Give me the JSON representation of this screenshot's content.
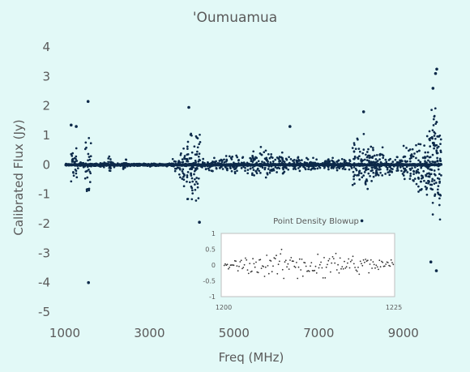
{
  "colors": {
    "background": "#e2f9f7",
    "points": "#0d2a4a",
    "axis_text": "#5a5a5a",
    "inset_background": "#ffffff",
    "inset_border": "#bfbfbf"
  },
  "chart_data": [
    {
      "type": "scatter",
      "title": "'Oumuamua",
      "xlabel": "Freq (MHz)",
      "ylabel": "Calibrated Flux (Jy)",
      "xlim": [
        1000,
        10000
      ],
      "ylim": [
        -5,
        4
      ],
      "xticks": [
        1000,
        3000,
        5000,
        7000,
        9000
      ],
      "xtick_labels": [
        "1000",
        "3000",
        "5000",
        "7000",
        "9000"
      ],
      "yticks": [
        4,
        3,
        2,
        1,
        0,
        -1,
        -2,
        -3,
        -4,
        -5
      ],
      "ytick_labels": [
        "4",
        "3",
        "2",
        "1",
        "0",
        "-1",
        "-2",
        "-3",
        "-4",
        "-5"
      ],
      "grid": false,
      "legend": "none",
      "band_envelope": {
        "description_units": "freq MHz -> approx flux amplitude Jy",
        "bands": [
          {
            "start": 1000,
            "end": 1130,
            "amp": 0.05
          },
          {
            "start": 1130,
            "end": 1330,
            "amp": 0.75
          },
          {
            "start": 1330,
            "end": 1480,
            "amp": 0.12
          },
          {
            "start": 1480,
            "end": 1620,
            "amp": 1.3
          },
          {
            "start": 1620,
            "end": 2000,
            "amp": 0.12
          },
          {
            "start": 2000,
            "end": 2100,
            "amp": 0.35
          },
          {
            "start": 2100,
            "end": 2380,
            "amp": 0.1
          },
          {
            "start": 2380,
            "end": 2460,
            "amp": 0.4
          },
          {
            "start": 2460,
            "end": 3500,
            "amp": 0.07
          },
          {
            "start": 3500,
            "end": 3700,
            "amp": 0.25
          },
          {
            "start": 3700,
            "end": 3850,
            "amp": 0.9
          },
          {
            "start": 3850,
            "end": 4200,
            "amp": 1.6
          },
          {
            "start": 4200,
            "end": 4600,
            "amp": 0.3
          },
          {
            "start": 4600,
            "end": 5400,
            "amp": 0.4
          },
          {
            "start": 5400,
            "end": 5900,
            "amp": 0.7
          },
          {
            "start": 5900,
            "end": 6200,
            "amp": 0.55
          },
          {
            "start": 6200,
            "end": 7400,
            "amp": 0.35
          },
          {
            "start": 7400,
            "end": 7800,
            "amp": 0.3
          },
          {
            "start": 7800,
            "end": 8300,
            "amp": 1.2
          },
          {
            "start": 8300,
            "end": 8700,
            "amp": 0.7
          },
          {
            "start": 8700,
            "end": 8950,
            "amp": 0.35
          },
          {
            "start": 8950,
            "end": 9300,
            "amp": 0.9
          },
          {
            "start": 9300,
            "end": 9600,
            "amp": 1.6
          },
          {
            "start": 9600,
            "end": 9900,
            "amp": 2.6
          }
        ]
      },
      "outliers": [
        {
          "x": 1560,
          "y": -4.0
        },
        {
          "x": 1550,
          "y": 2.15
        },
        {
          "x": 9790,
          "y": 3.25
        },
        {
          "x": 9760,
          "y": 3.1
        },
        {
          "x": 9700,
          "y": 2.6
        },
        {
          "x": 9780,
          "y": -3.6
        },
        {
          "x": 9650,
          "y": -3.3
        },
        {
          "x": 8060,
          "y": 1.8
        },
        {
          "x": 3930,
          "y": 1.95
        },
        {
          "x": 4180,
          "y": -1.95
        },
        {
          "x": 6320,
          "y": 1.3
        },
        {
          "x": 1150,
          "y": 1.35
        },
        {
          "x": 1270,
          "y": 1.3
        },
        {
          "x": 8020,
          "y": -1.9
        }
      ]
    },
    {
      "type": "scatter",
      "title": "Point Density Blowup",
      "xlim": [
        1200,
        1225
      ],
      "ylim": [
        -1,
        1
      ],
      "xtick_labels": [
        "1200",
        "1225"
      ],
      "yticks": [
        1,
        0.5,
        0,
        -0.5,
        -1
      ],
      "ytick_labels": [
        "1",
        "0.5",
        "0",
        "-0.5",
        "-1"
      ],
      "approx_amplitude": 0.85,
      "approx_point_count": 160
    }
  ]
}
